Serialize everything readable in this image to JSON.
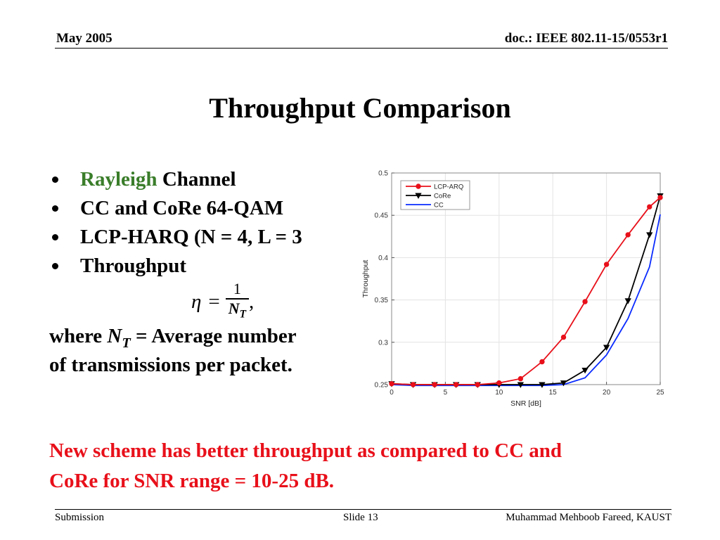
{
  "header": {
    "date": "May 2005",
    "doc": "doc.: IEEE 802.11-15/0553r1"
  },
  "title": "Throughput Comparison",
  "bullets": [
    {
      "highlight": "Rayleigh",
      "text": " Channel"
    },
    {
      "highlight": "",
      "text": "CC and CoRe 64-QAM"
    },
    {
      "highlight": "",
      "text": "LCP-HARQ (N = 4, L = 3"
    },
    {
      "highlight": "",
      "text": "Throughput"
    }
  ],
  "formula": {
    "lhs": "η",
    "eq": "=",
    "num": "1",
    "den_var": "N",
    "den_sub": "T",
    "tail": ","
  },
  "where": {
    "prefix": "where ",
    "var": "N",
    "sub": "T",
    "rest": " = Average number",
    "line2": "of transmissions per packet."
  },
  "conclusion": [
    "New scheme has better throughput as compared to CC and",
    "CoRe for SNR range = 10-25 dB."
  ],
  "footer": {
    "left": "Submission",
    "center": "Slide 13",
    "right": "Muhammad Mehboob Fareed, KAUST"
  },
  "colors": {
    "highlight": "#3a7d2a",
    "conclusion": "#e8101a"
  },
  "chart_data": {
    "type": "line",
    "title": "",
    "xlabel": "SNR [dB]",
    "ylabel": "Throughput",
    "xlim": [
      0,
      25
    ],
    "ylim": [
      0.25,
      0.5
    ],
    "xticks": [
      0,
      5,
      10,
      15,
      20,
      25
    ],
    "yticks": [
      0.25,
      0.3,
      0.35,
      0.4,
      0.45,
      0.5
    ],
    "grid": true,
    "legend_position": "top-left",
    "x": [
      0,
      2,
      4,
      6,
      8,
      10,
      12,
      14,
      16,
      18,
      20,
      22,
      24,
      25
    ],
    "series": [
      {
        "name": "LCP-ARQ",
        "color": "#e8101a",
        "marker": "circle",
        "values": [
          0.251,
          0.25,
          0.25,
          0.25,
          0.25,
          0.252,
          0.257,
          0.277,
          0.306,
          0.348,
          0.392,
          0.427,
          0.46,
          0.471
        ]
      },
      {
        "name": "CoRe",
        "color": "#000000",
        "marker": "triangle-down",
        "values": [
          0.251,
          0.25,
          0.25,
          0.25,
          0.25,
          0.25,
          0.25,
          0.25,
          0.252,
          0.267,
          0.294,
          0.349,
          0.427,
          0.473
        ]
      },
      {
        "name": "CC",
        "color": "#0a2bff",
        "marker": "none",
        "values": [
          0.25,
          0.249,
          0.249,
          0.249,
          0.249,
          0.249,
          0.249,
          0.249,
          0.25,
          0.258,
          0.285,
          0.328,
          0.389,
          0.451
        ]
      }
    ]
  }
}
